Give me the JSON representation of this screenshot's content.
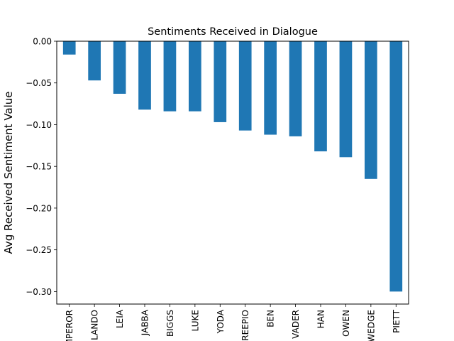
{
  "chart_data": {
    "type": "bar",
    "title": "Sentiments Received in Dialogue",
    "xlabel": "",
    "ylabel": "Avg Received Sentiment Value",
    "categories": [
      "EMPEROR",
      "LANDO",
      "LEIA",
      "JABBA",
      "BIGGS",
      "LUKE",
      "YODA",
      "THREEPIO",
      "BEN",
      "VADER",
      "HAN",
      "OWEN",
      "WEDGE",
      "PIETT"
    ],
    "values": [
      -0.016,
      -0.047,
      -0.063,
      -0.082,
      -0.084,
      -0.084,
      -0.097,
      -0.107,
      -0.112,
      -0.114,
      -0.132,
      -0.139,
      -0.165,
      -0.3
    ],
    "ylim": [
      -0.315,
      0.0
    ],
    "yticks": [
      0.0,
      -0.05,
      -0.1,
      -0.15,
      -0.2,
      -0.25,
      -0.3
    ],
    "ytick_labels": [
      "0.00",
      "−0.05",
      "−0.10",
      "−0.15",
      "−0.20",
      "−0.25",
      "−0.30"
    ],
    "grid": false,
    "legend": "none",
    "bar_color": "#1f77b4"
  }
}
